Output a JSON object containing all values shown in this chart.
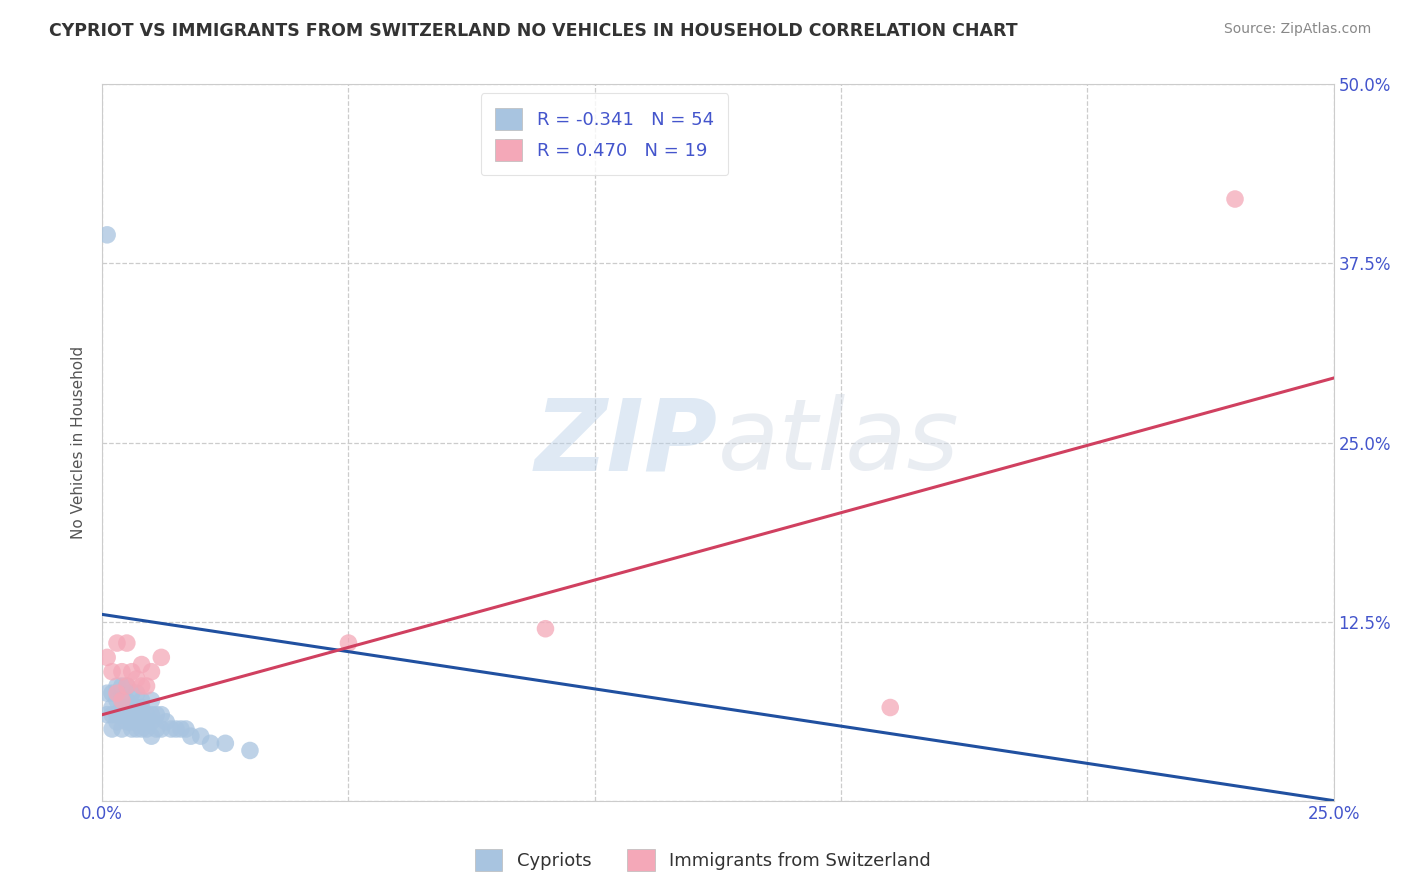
{
  "title": "CYPRIOT VS IMMIGRANTS FROM SWITZERLAND NO VEHICLES IN HOUSEHOLD CORRELATION CHART",
  "source": "Source: ZipAtlas.com",
  "ylabel": "No Vehicles in Household",
  "xlim": [
    0.0,
    0.25
  ],
  "ylim": [
    0.0,
    0.5
  ],
  "xticks": [
    0.0,
    0.05,
    0.1,
    0.15,
    0.2,
    0.25
  ],
  "yticks": [
    0.0,
    0.125,
    0.25,
    0.375,
    0.5
  ],
  "xtick_labels": [
    "0.0%",
    "",
    "",
    "",
    "",
    "25.0%"
  ],
  "ytick_labels_right": [
    "",
    "12.5%",
    "25.0%",
    "37.5%",
    "50.0%"
  ],
  "blue_R": -0.341,
  "blue_N": 54,
  "pink_R": 0.47,
  "pink_N": 19,
  "blue_color": "#a8c4e0",
  "pink_color": "#f4a8b8",
  "blue_line_color": "#2050a0",
  "pink_line_color": "#d04060",
  "watermark_zip": "ZIP",
  "watermark_atlas": "atlas",
  "legend_label_blue": "Cypriots",
  "legend_label_pink": "Immigrants from Switzerland",
  "blue_scatter_x": [
    0.001,
    0.001,
    0.002,
    0.002,
    0.002,
    0.002,
    0.003,
    0.003,
    0.003,
    0.003,
    0.004,
    0.004,
    0.004,
    0.004,
    0.005,
    0.005,
    0.005,
    0.005,
    0.005,
    0.006,
    0.006,
    0.006,
    0.006,
    0.006,
    0.007,
    0.007,
    0.007,
    0.007,
    0.008,
    0.008,
    0.008,
    0.008,
    0.009,
    0.009,
    0.009,
    0.01,
    0.01,
    0.01,
    0.01,
    0.011,
    0.011,
    0.012,
    0.012,
    0.013,
    0.014,
    0.015,
    0.016,
    0.017,
    0.018,
    0.02,
    0.022,
    0.025,
    0.03,
    0.001
  ],
  "blue_scatter_y": [
    0.06,
    0.075,
    0.05,
    0.06,
    0.065,
    0.075,
    0.055,
    0.06,
    0.07,
    0.08,
    0.05,
    0.06,
    0.065,
    0.08,
    0.055,
    0.06,
    0.065,
    0.07,
    0.08,
    0.05,
    0.055,
    0.06,
    0.065,
    0.075,
    0.05,
    0.06,
    0.065,
    0.075,
    0.05,
    0.06,
    0.065,
    0.07,
    0.05,
    0.055,
    0.06,
    0.045,
    0.055,
    0.06,
    0.07,
    0.05,
    0.06,
    0.05,
    0.06,
    0.055,
    0.05,
    0.05,
    0.05,
    0.05,
    0.045,
    0.045,
    0.04,
    0.04,
    0.035,
    0.395
  ],
  "pink_scatter_x": [
    0.001,
    0.002,
    0.003,
    0.003,
    0.004,
    0.004,
    0.005,
    0.005,
    0.006,
    0.007,
    0.008,
    0.008,
    0.009,
    0.01,
    0.012,
    0.05,
    0.09,
    0.16,
    0.23
  ],
  "pink_scatter_y": [
    0.1,
    0.09,
    0.075,
    0.11,
    0.07,
    0.09,
    0.08,
    0.11,
    0.09,
    0.085,
    0.08,
    0.095,
    0.08,
    0.09,
    0.1,
    0.11,
    0.12,
    0.065,
    0.42
  ],
  "blue_line_x0": 0.0,
  "blue_line_x1": 0.25,
  "blue_line_y0": 0.13,
  "blue_line_y1": 0.0,
  "pink_line_x0": 0.0,
  "pink_line_x1": 0.25,
  "pink_line_y0": 0.06,
  "pink_line_y1": 0.295
}
